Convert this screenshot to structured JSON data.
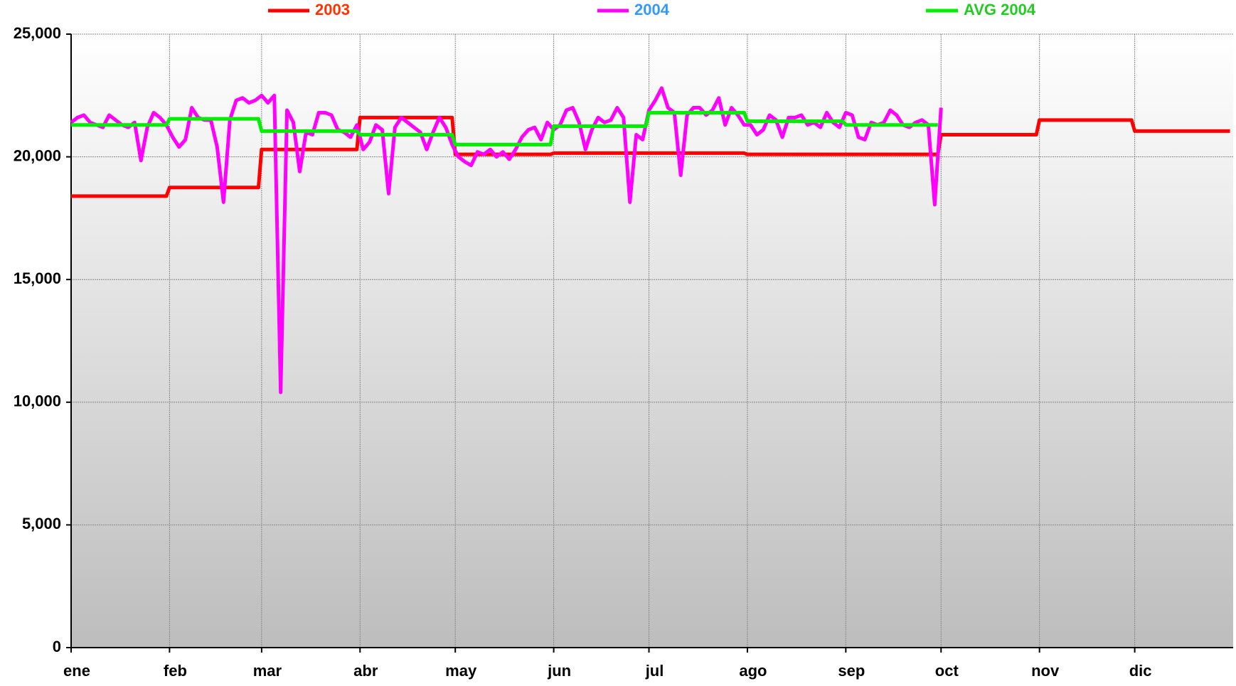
{
  "chart_data": {
    "type": "line",
    "xlim": [
      0,
      366
    ],
    "xticks": [
      {
        "value": 0,
        "label": "ene"
      },
      {
        "value": 31,
        "label": "feb"
      },
      {
        "value": 60,
        "label": "mar"
      },
      {
        "value": 91,
        "label": "abr"
      },
      {
        "value": 121,
        "label": "may"
      },
      {
        "value": 152,
        "label": "jun"
      },
      {
        "value": 182,
        "label": "jul"
      },
      {
        "value": 213,
        "label": "ago"
      },
      {
        "value": 244,
        "label": "sep"
      },
      {
        "value": 274,
        "label": "oct"
      },
      {
        "value": 305,
        "label": "nov"
      },
      {
        "value": 335,
        "label": "dic"
      }
    ],
    "ylim": [
      0,
      25000
    ],
    "yticks": [
      0,
      {
        "value": 5000,
        "label": "5,000"
      },
      {
        "value": 10000,
        "label": "10,000"
      },
      {
        "value": 15000,
        "label": "15,000"
      },
      {
        "value": 20000,
        "label": "20,000"
      },
      {
        "value": 25000,
        "label": "25,000"
      }
    ],
    "grid": true,
    "series": [
      {
        "name": "2003",
        "color": "#ff0000",
        "label_color": "#ff3300",
        "x": [
          0,
          30,
          31,
          59,
          60,
          90,
          91,
          120,
          121,
          151,
          152,
          181,
          182,
          212,
          213,
          243,
          244,
          273,
          274,
          304,
          305,
          334,
          335,
          365
        ],
        "values": [
          18400,
          18400,
          18750,
          18750,
          20300,
          20300,
          21600,
          21600,
          20100,
          20100,
          20150,
          20150,
          20150,
          20150,
          20100,
          20100,
          20100,
          20100,
          20900,
          20900,
          21500,
          21500,
          21050,
          21050
        ]
      },
      {
        "name": "2004",
        "color": "#ff00ff",
        "label_color": "#3399ff",
        "x": [
          0,
          2,
          4,
          6,
          8,
          10,
          12,
          14,
          16,
          18,
          20,
          22,
          24,
          26,
          28,
          30,
          32,
          34,
          36,
          38,
          40,
          42,
          44,
          46,
          48,
          50,
          52,
          54,
          56,
          58,
          60,
          62,
          64,
          66,
          68,
          70,
          72,
          74,
          76,
          78,
          80,
          82,
          84,
          86,
          88,
          90,
          92,
          94,
          96,
          98,
          100,
          102,
          104,
          106,
          108,
          110,
          112,
          114,
          116,
          118,
          120,
          122,
          124,
          126,
          128,
          130,
          132,
          134,
          136,
          138,
          140,
          142,
          144,
          146,
          148,
          150,
          152,
          154,
          156,
          158,
          160,
          162,
          164,
          166,
          168,
          170,
          172,
          174,
          176,
          178,
          180,
          182,
          184,
          186,
          188,
          190,
          192,
          194,
          196,
          198,
          200,
          202,
          204,
          206,
          208,
          210,
          212,
          214,
          216,
          218,
          220,
          222,
          224,
          226,
          228,
          230,
          232,
          234,
          236,
          238,
          240,
          242,
          244,
          246,
          248,
          250,
          252,
          254,
          256,
          258,
          260,
          262,
          264,
          266,
          268,
          270,
          272,
          274
        ],
        "values": [
          21400,
          21600,
          21700,
          21400,
          21300,
          21200,
          21700,
          21500,
          21300,
          21200,
          21400,
          19850,
          21200,
          21800,
          21600,
          21300,
          20800,
          20400,
          20700,
          22000,
          21600,
          21500,
          21500,
          20400,
          18150,
          21500,
          22300,
          22400,
          22200,
          22300,
          22500,
          22200,
          22500,
          10400,
          21900,
          21400,
          19400,
          21000,
          20900,
          21800,
          21800,
          21700,
          21100,
          21000,
          20800,
          21300,
          20300,
          20600,
          21300,
          21100,
          18500,
          21200,
          21600,
          21400,
          21200,
          21000,
          20300,
          21000,
          21600,
          21200,
          20500,
          20000,
          19800,
          19650,
          20200,
          20100,
          20300,
          20000,
          20200,
          19900,
          20300,
          20800,
          21100,
          21200,
          20700,
          21400,
          21100,
          21300,
          21900,
          22000,
          21400,
          20300,
          21100,
          21600,
          21400,
          21500,
          22000,
          21600,
          18150,
          20900,
          20700,
          21900,
          22300,
          22800,
          22000,
          21800,
          19250,
          21700,
          22000,
          22000,
          21700,
          21900,
          22400,
          21300,
          22000,
          21700,
          21300,
          21300,
          20900,
          21100,
          21700,
          21500,
          20800,
          21600,
          21600,
          21700,
          21300,
          21400,
          21200,
          21800,
          21400,
          21200,
          21800,
          21700,
          20800,
          20700,
          21400,
          21300,
          21400,
          21900,
          21700,
          21300,
          21200,
          21400,
          21500,
          21300,
          18050,
          22000
        ]
      },
      {
        "name": "AVG 2004",
        "color": "#00ee00",
        "label_color": "#22cc22",
        "x": [
          0,
          30,
          31,
          59,
          60,
          90,
          91,
          120,
          121,
          151,
          152,
          181,
          182,
          212,
          213,
          243,
          244,
          273
        ],
        "values": [
          21300,
          21300,
          21550,
          21550,
          21050,
          21050,
          20900,
          20900,
          20500,
          20500,
          21250,
          21250,
          21800,
          21800,
          21450,
          21450,
          21300,
          21300
        ]
      }
    ]
  }
}
